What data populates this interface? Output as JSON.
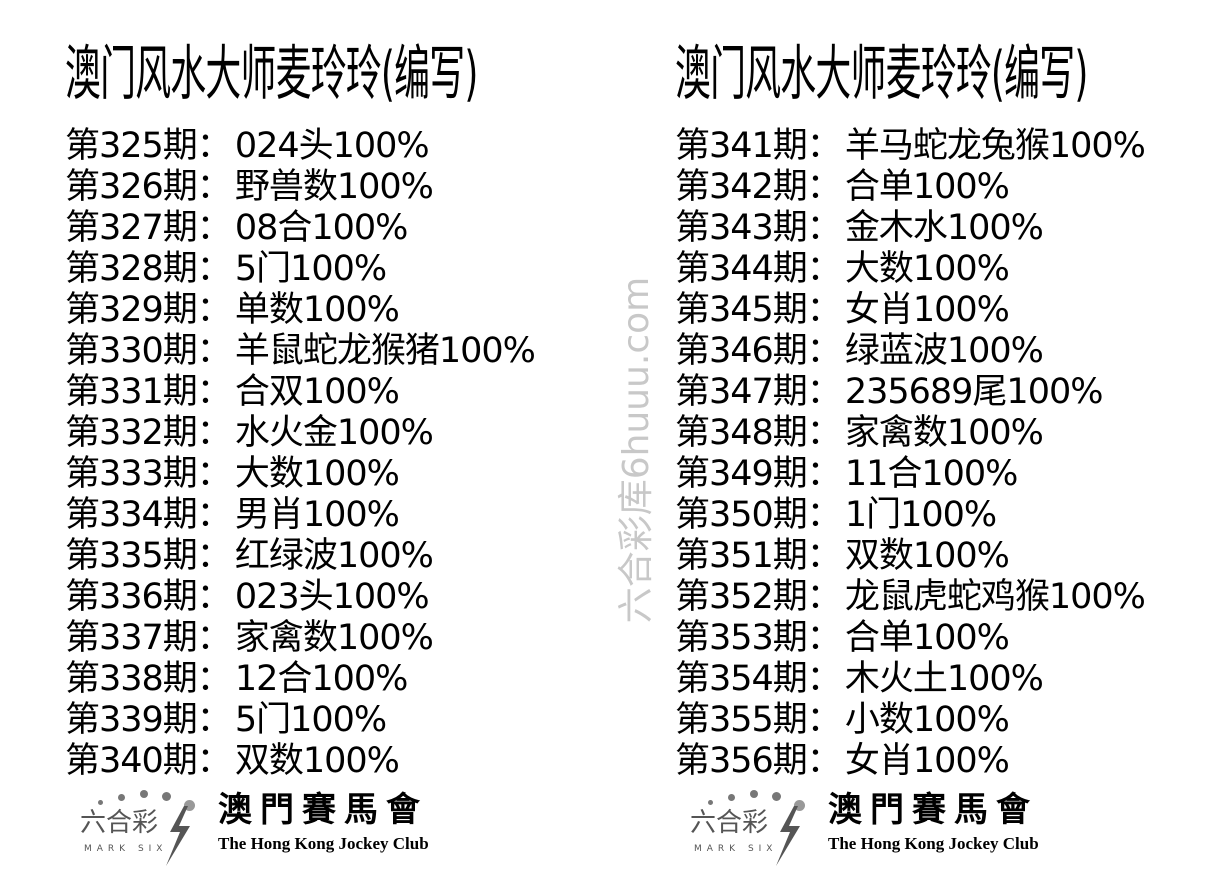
{
  "title": "澳门风水大师麦玲玲(编写)",
  "watermark": "六合彩库6huuu.com",
  "left_rows": [
    {
      "issue": "第325期：",
      "value": "024头100%"
    },
    {
      "issue": "第326期：",
      "value": "野兽数100%"
    },
    {
      "issue": "第327期：",
      "value": "08合100%"
    },
    {
      "issue": "第328期：",
      "value": "5门100%"
    },
    {
      "issue": "第329期：",
      "value": "单数100%"
    },
    {
      "issue": "第330期：",
      "value": "羊鼠蛇龙猴猪100%"
    },
    {
      "issue": "第331期：",
      "value": "合双100%"
    },
    {
      "issue": "第332期：",
      "value": "水火金100%"
    },
    {
      "issue": "第333期：",
      "value": "大数100%"
    },
    {
      "issue": "第334期：",
      "value": "男肖100%"
    },
    {
      "issue": "第335期：",
      "value": "红绿波100%"
    },
    {
      "issue": "第336期：",
      "value": "023头100%"
    },
    {
      "issue": "第337期：",
      "value": "家禽数100%"
    },
    {
      "issue": "第338期：",
      "value": "12合100%"
    },
    {
      "issue": "第339期：",
      "value": "5门100%"
    },
    {
      "issue": "第340期：",
      "value": "双数100%"
    }
  ],
  "right_rows": [
    {
      "issue": "第341期：",
      "value": "羊马蛇龙兔猴100%"
    },
    {
      "issue": "第342期：",
      "value": "合单100%"
    },
    {
      "issue": "第343期：",
      "value": "金木水100%"
    },
    {
      "issue": "第344期：",
      "value": "大数100%"
    },
    {
      "issue": "第345期：",
      "value": "女肖100%"
    },
    {
      "issue": "第346期：",
      "value": "绿蓝波100%"
    },
    {
      "issue": "第347期：",
      "value": "235689尾100%"
    },
    {
      "issue": "第348期：",
      "value": "家禽数100%"
    },
    {
      "issue": "第349期：",
      "value": "11合100%"
    },
    {
      "issue": "第350期：",
      "value": "1门100%"
    },
    {
      "issue": "第351期：",
      "value": "双数100%"
    },
    {
      "issue": "第352期：",
      "value": "龙鼠虎蛇鸡猴100%"
    },
    {
      "issue": "第353期：",
      "value": "合单100%"
    },
    {
      "issue": "第354期：",
      "value": "木火土100%"
    },
    {
      "issue": "第355期：",
      "value": "小数100%"
    },
    {
      "issue": "第356期：",
      "value": "女肖100%"
    }
  ],
  "logo": {
    "mark_six_cn": "六合彩",
    "mark_six_en": "MARK SIX",
    "club_cn": "澳門賽馬會",
    "club_en": "The Hong Kong Jockey Club"
  }
}
